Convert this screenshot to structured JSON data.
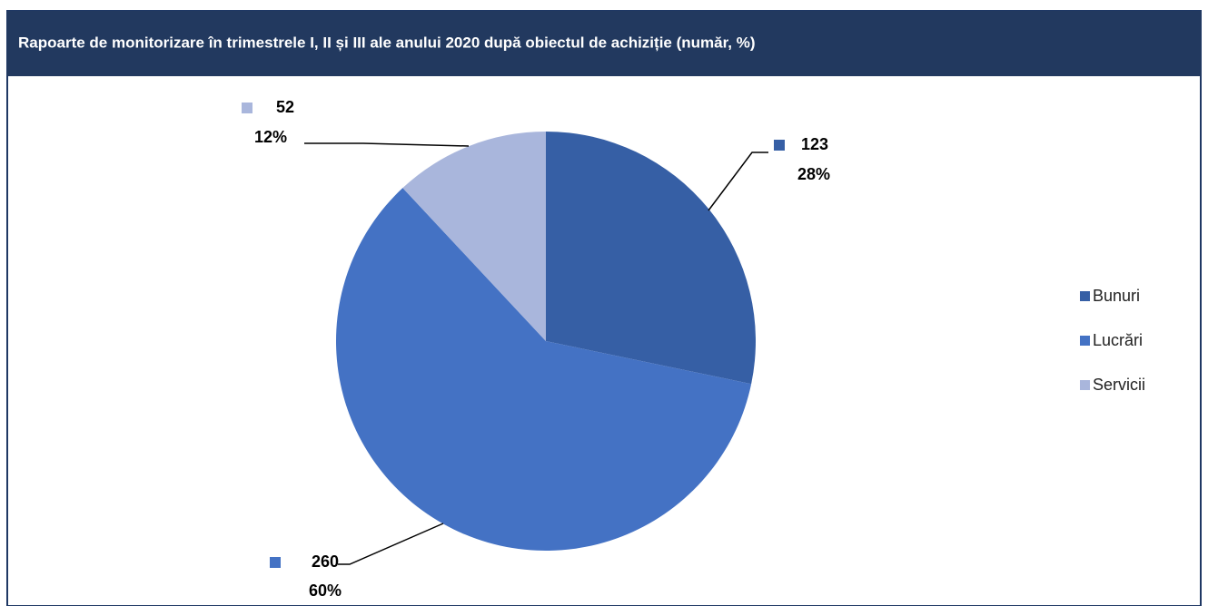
{
  "chart_data": {
    "type": "pie",
    "title": "Rapoarte de monitorizare în trimestrele I, II și III ale anului 2020 după obiectul de achiziție (număr, %)",
    "categories": [
      "Bunuri",
      "Lucrări",
      "Servicii"
    ],
    "values": [
      123,
      260,
      52
    ],
    "percentages": [
      {
        "value": 28,
        "label": "28%"
      },
      {
        "value": 60,
        "label": "60%"
      },
      {
        "value": 12,
        "label": "12%"
      }
    ],
    "colors": [
      "#365fa5",
      "#4472c4",
      "#a9b6dc"
    ],
    "legend": "right"
  }
}
